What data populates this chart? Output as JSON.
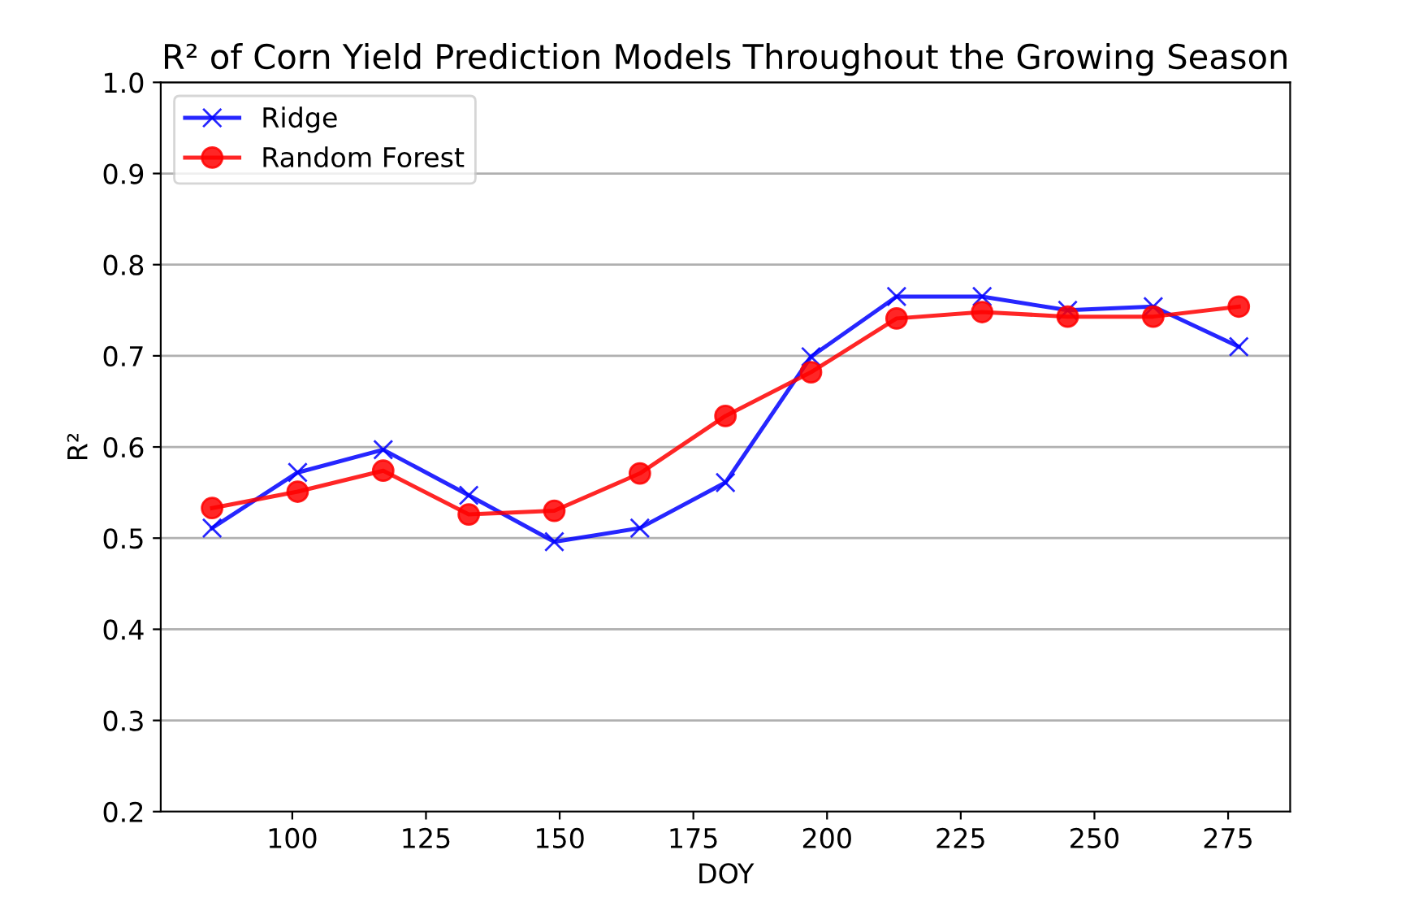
{
  "chart_data": {
    "type": "line",
    "title": "R² of Corn Yield Prediction Models Throughout the Growing Season",
    "xlabel": "DOY",
    "ylabel": "R²",
    "x": [
      85,
      101,
      117,
      133,
      149,
      165,
      181,
      197,
      213,
      229,
      245,
      261,
      277
    ],
    "series": [
      {
        "name": "Ridge",
        "color": "#0000ff",
        "marker": "cross",
        "values": [
          0.511,
          0.572,
          0.597,
          0.547,
          0.496,
          0.511,
          0.561,
          0.699,
          0.765,
          0.765,
          0.75,
          0.754,
          0.71
        ]
      },
      {
        "name": "Random Forest",
        "color": "#ff0000",
        "marker": "circle",
        "values": [
          0.533,
          0.551,
          0.574,
          0.526,
          0.53,
          0.571,
          0.634,
          0.682,
          0.741,
          0.748,
          0.743,
          0.743,
          0.754
        ]
      }
    ],
    "xlim": [
      75.4,
      286.6
    ],
    "xticks": [
      100,
      125,
      150,
      175,
      200,
      225,
      250,
      275
    ],
    "ylim": [
      0.2,
      1.0
    ],
    "yticks": [
      0.2,
      0.3,
      0.4,
      0.5,
      0.6,
      0.7,
      0.8,
      0.9,
      {
        "value": 1.0,
        "label": "1.0"
      }
    ],
    "grid": "y",
    "legend": "top left",
    "line_style": "solid"
  }
}
